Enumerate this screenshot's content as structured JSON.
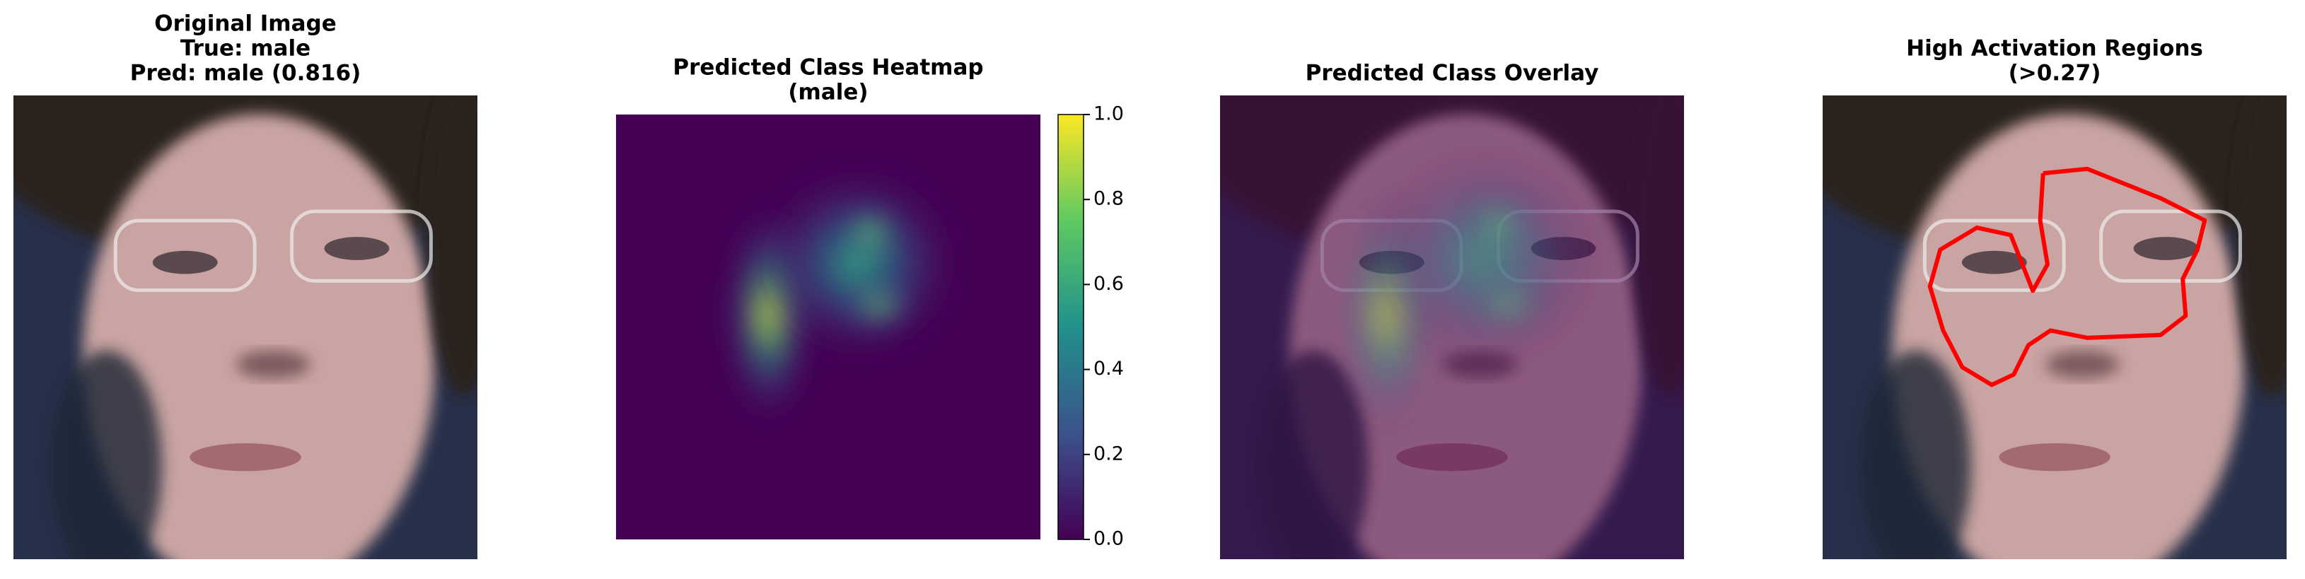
{
  "chart_data": [
    {
      "type": "image",
      "title": [
        "Original Image",
        "True: male",
        "Pred: male (0.816)"
      ]
    },
    {
      "type": "heatmap",
      "title": [
        "Predicted Class Heatmap",
        "(male)"
      ],
      "colormap": "viridis",
      "ylim": [
        0,
        1
      ],
      "yticks": [
        {
          "value": 0,
          "label": "0.0"
        },
        {
          "value": 0.2,
          "label": "0.2"
        },
        {
          "value": 0.4,
          "label": "0.4"
        },
        {
          "value": 0.6,
          "label": "0.6"
        },
        {
          "value": 0.8,
          "label": "0.8"
        },
        {
          "value": 1,
          "label": "1.0"
        }
      ]
    },
    {
      "type": "overlay",
      "title": [
        "Predicted Class Overlay"
      ],
      "colormap": "viridis"
    },
    {
      "type": "contour",
      "title": [
        "High Activation Regions",
        "(>0.27)"
      ],
      "color": "#ff0000"
    }
  ]
}
